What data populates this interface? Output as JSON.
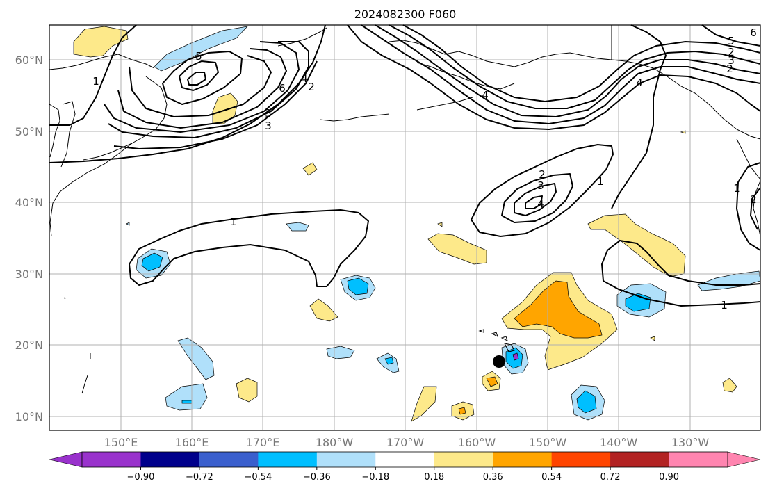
{
  "title": "2024082300 F060",
  "lat_labels": [
    "10°N",
    "20°N",
    "30°N",
    "40°N",
    "50°N",
    "60°N"
  ],
  "lon_labels": [
    "150°E",
    "160°E",
    "170°E",
    "180°W",
    "170°W",
    "160°W",
    "150°W",
    "140°W",
    "130°W"
  ],
  "contour_labels": [
    "1",
    "1",
    "1",
    "2",
    "3",
    "4",
    "5",
    "6",
    "3",
    "4",
    "2",
    "3",
    "4",
    "2",
    "1",
    "5",
    "6",
    "3",
    "2",
    "4",
    "2",
    "1"
  ],
  "colorbar": {
    "ticks": [
      "−0.90",
      "−0.72",
      "−0.54",
      "−0.36",
      "−0.18",
      "0.18",
      "0.36",
      "0.54",
      "0.72",
      "0.90"
    ],
    "colors": [
      "#9932cc",
      "#00008b",
      "#3a5fcd",
      "#00bfff",
      "#b0e0fa",
      "#ffffff",
      "#fde98a",
      "#ffa500",
      "#ff4500",
      "#b22222",
      "#ff85b0"
    ]
  },
  "marker": "storm-center-dot"
}
